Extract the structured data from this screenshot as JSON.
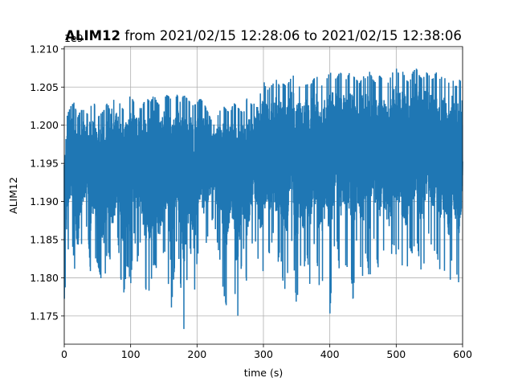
{
  "chart_data": {
    "type": "line",
    "title_bold": "ALIM12",
    "title_rest": " from 2021/02/15 12:28:06 to 2021/02/15 12:38:06",
    "xlabel": "time (s)",
    "ylabel": "ALIM12",
    "offset_label": "1e9",
    "xlim": [
      0,
      600
    ],
    "ylim": [
      1.1713,
      1.2103
    ],
    "x_ticks": [
      "0",
      "100",
      "200",
      "300",
      "400",
      "500",
      "600"
    ],
    "y_ticks": [
      "1.175",
      "1.180",
      "1.185",
      "1.190",
      "1.195",
      "1.200",
      "1.205",
      "1.210"
    ],
    "grid": true,
    "line_color": "#1f77b4",
    "series": [
      {
        "x": [
          0,
          5,
          10,
          15,
          20,
          25,
          30,
          35,
          40,
          45,
          50,
          55,
          60,
          65,
          70,
          75,
          80,
          85,
          90,
          95,
          100,
          105,
          110,
          115,
          120,
          125,
          130,
          135,
          140,
          145,
          150,
          155,
          160,
          165,
          170,
          175,
          180,
          185,
          190,
          195,
          200,
          205,
          210,
          215,
          220,
          225,
          230,
          235,
          240,
          245,
          250,
          255,
          260,
          265,
          270,
          275,
          280,
          285,
          290,
          295,
          300,
          305,
          310,
          315,
          320,
          325,
          330,
          335,
          340,
          345,
          350,
          355,
          360,
          365,
          370,
          375,
          380,
          385,
          390,
          395,
          400,
          405,
          410,
          415,
          420,
          425,
          430,
          435,
          440,
          445,
          450,
          455,
          460,
          465,
          470,
          475,
          480,
          485,
          490,
          495,
          500,
          505,
          510,
          515,
          520,
          525,
          530,
          535,
          540,
          545,
          550,
          555,
          560,
          565,
          570,
          575,
          580,
          585,
          590,
          595,
          600
        ],
        "y_max": [
          1.1985,
          1.2015,
          1.2025,
          1.203,
          1.201,
          1.202,
          1.202,
          1.2015,
          1.2025,
          1.203,
          1.201,
          1.2015,
          1.202,
          1.203,
          1.2015,
          1.2035,
          1.204,
          1.2025,
          1.202,
          1.203,
          1.204,
          1.203,
          1.2035,
          1.202,
          1.203,
          1.2035,
          1.203,
          1.204,
          1.203,
          1.2025,
          1.2035,
          1.204,
          1.2035,
          1.203,
          1.204,
          1.203,
          1.204,
          1.2035,
          1.203,
          1.2025,
          1.203,
          1.2035,
          1.203,
          1.202,
          1.201,
          1.2,
          1.201,
          1.202,
          1.2025,
          1.202,
          1.2015,
          1.203,
          1.2025,
          1.202,
          1.2015,
          1.2035,
          1.203,
          1.2025,
          1.2045,
          1.204,
          1.206,
          1.2045,
          1.205,
          1.2055,
          1.206,
          1.205,
          1.2055,
          1.205,
          1.206,
          1.2065,
          1.2055,
          1.205,
          1.2045,
          1.2055,
          1.205,
          1.206,
          1.2065,
          1.2055,
          1.205,
          1.206,
          1.207,
          1.2065,
          1.206,
          1.207,
          1.2065,
          1.206,
          1.207,
          1.2065,
          1.206,
          1.2055,
          1.2065,
          1.206,
          1.207,
          1.206,
          1.2055,
          1.2065,
          1.206,
          1.205,
          1.206,
          1.207,
          1.2075,
          1.2065,
          1.207,
          1.206,
          1.2055,
          1.207,
          1.2075,
          1.2065,
          1.206,
          1.207,
          1.2065,
          1.206,
          1.207,
          1.206,
          1.2065,
          1.206,
          1.2055,
          1.206,
          1.205,
          1.206,
          1.2055
        ],
        "y_min": [
          1.177,
          1.183,
          1.1865,
          1.182,
          1.1755,
          1.184,
          1.186,
          1.187,
          1.18,
          1.183,
          1.182,
          1.18,
          1.1785,
          1.184,
          1.182,
          1.181,
          1.186,
          1.18,
          1.178,
          1.182,
          1.179,
          1.186,
          1.182,
          1.185,
          1.18,
          1.1775,
          1.179,
          1.182,
          1.181,
          1.178,
          1.184,
          1.182,
          1.1745,
          1.18,
          1.186,
          1.1795,
          1.173,
          1.18,
          1.184,
          1.177,
          1.182,
          1.186,
          1.183,
          1.185,
          1.187,
          1.188,
          1.185,
          1.182,
          1.178,
          1.176,
          1.183,
          1.182,
          1.173,
          1.18,
          1.184,
          1.179,
          1.182,
          1.186,
          1.184,
          1.18,
          1.181,
          1.184,
          1.183,
          1.186,
          1.1805,
          1.184,
          1.179,
          1.178,
          1.187,
          1.183,
          1.176,
          1.182,
          1.18,
          1.184,
          1.179,
          1.185,
          1.183,
          1.178,
          1.18,
          1.184,
          1.175,
          1.183,
          1.186,
          1.18,
          1.184,
          1.181,
          1.183,
          1.177,
          1.185,
          1.182,
          1.18,
          1.184,
          1.179,
          1.186,
          1.183,
          1.18,
          1.184,
          1.182,
          1.18,
          1.185,
          1.183,
          1.184,
          1.181,
          1.18,
          1.184,
          1.183,
          1.186,
          1.182,
          1.18,
          1.185,
          1.186,
          1.183,
          1.184,
          1.181,
          1.182,
          1.18,
          1.178,
          1.184,
          1.181,
          1.179,
          1.185
        ]
      }
    ]
  }
}
